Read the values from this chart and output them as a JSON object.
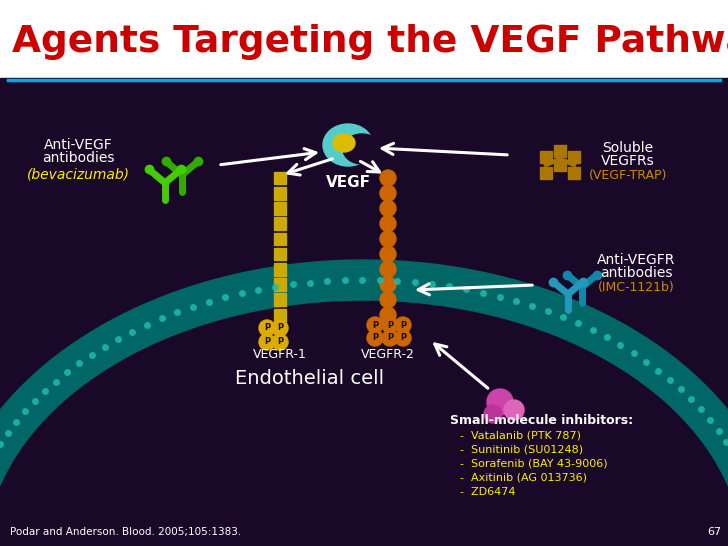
{
  "title": "Agents Targeting the VEGF Pathway",
  "title_color": "#cc0000",
  "bg_white": "#ffffff",
  "bg_dark": "#1a0828",
  "separator_color": "#00aadd",
  "text_white": "#ffffff",
  "text_yellow": "#ffee00",
  "text_gold": "#cc8800",
  "green_ab": "#33bb00",
  "green_ab2": "#22aa00",
  "cyan_ab": "#1199bb",
  "teal_mem": "#007788",
  "teal_dot": "#00bbaa",
  "yellow_chain": "#ccaa00",
  "orange_chain": "#cc6600",
  "gold_diamond": "#aa7700",
  "pink1": "#cc44aa",
  "pink2": "#dd66bb",
  "label_anti_vegf_line1": "Anti-VEGF",
  "label_anti_vegf_line2": "antibodies",
  "label_bevacizumab": "(bevacizumab)",
  "label_vegf": "VEGF",
  "label_soluble_line1": "Soluble",
  "label_soluble_line2": "VEGFRs",
  "label_vegftrap": "(VEGF-TRAP)",
  "label_anti_vegfr_line1": "Anti-VEGFR",
  "label_anti_vegfr_line2": "antibodies",
  "label_imc": "(IMC-1121b)",
  "label_vegfr1": "VEGFR-1",
  "label_vegfr2": "VEGFR-2",
  "label_endo": "Endothelial cell",
  "label_small": "Small-molecule inhibitors:",
  "inhibitors": [
    "Vatalanib (PTK 787)",
    "Sunitinib (SU01248)",
    "Sorafenib (BAY 43-9006)",
    "Axitinib (AG 013736)",
    "ZD6474"
  ],
  "label_citation": "Podar and Anderson. Blood. 2005;105:1383.",
  "label_67": "67",
  "figw": 7.28,
  "figh": 5.46,
  "dpi": 100
}
